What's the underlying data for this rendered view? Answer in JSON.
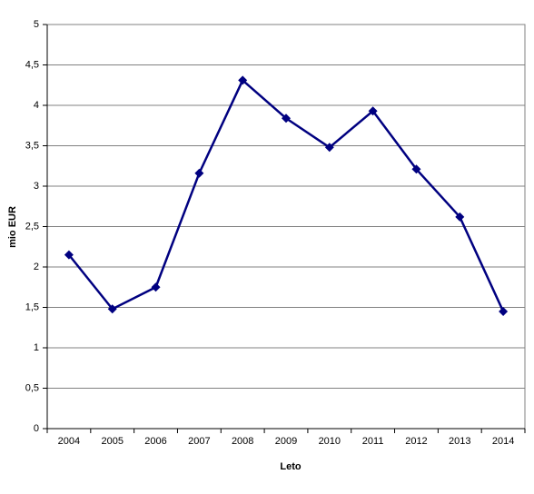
{
  "chart_data": {
    "type": "line",
    "categories": [
      "2004",
      "2005",
      "2006",
      "2007",
      "2008",
      "2009",
      "2010",
      "2011",
      "2012",
      "2013",
      "2014"
    ],
    "series": [
      {
        "name": "mio EUR",
        "color": "#000080",
        "values": [
          2.15,
          1.48,
          1.75,
          3.16,
          4.31,
          3.84,
          3.48,
          3.93,
          3.21,
          2.62,
          1.45
        ]
      }
    ],
    "ylabel": "mio EUR",
    "xlabel": "Leto",
    "ylim": [
      0,
      5
    ],
    "yticks": [
      0,
      {
        "value": 0.5,
        "label": "0,5"
      },
      1,
      {
        "value": 1.5,
        "label": "1,5"
      },
      2,
      {
        "value": 2.5,
        "label": "2,5"
      },
      3,
      {
        "value": 3.5,
        "label": "3,5"
      },
      4,
      {
        "value": 4.5,
        "label": "4,5"
      },
      5
    ],
    "grid": true
  }
}
